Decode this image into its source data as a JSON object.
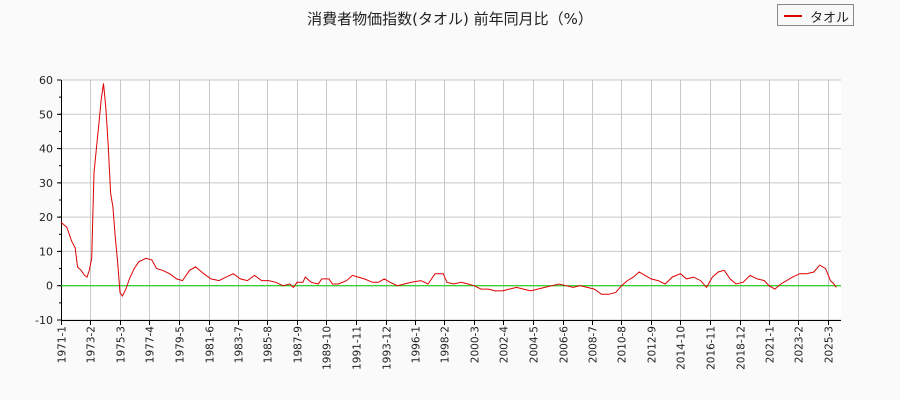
{
  "chart_data": {
    "type": "line",
    "title": "消費者物価指数(タオル) 前年同月比（%）",
    "xlabel": "",
    "ylabel": "",
    "ylim": [
      -10,
      60
    ],
    "yticks": [
      -10,
      0,
      10,
      20,
      30,
      40,
      50,
      60
    ],
    "grid": true,
    "legend_position": "top-right",
    "x_tick_labels": [
      "1971-1",
      "1973-2",
      "1975-3",
      "1977-4",
      "1979-5",
      "1981-6",
      "1983-7",
      "1985-8",
      "1987-9",
      "1989-10",
      "1991-11",
      "1993-12",
      "1996-1",
      "1998-2",
      "2000-3",
      "2002-4",
      "2004-5",
      "2006-6",
      "2008-7",
      "2010-8",
      "2012-9",
      "2014-10",
      "2016-11",
      "2018-12",
      "2021-1",
      "2023-2",
      "2025-3"
    ],
    "reference_line": {
      "y": 0,
      "color": "#00cc00"
    },
    "series": [
      {
        "name": "タオル",
        "color": "#dd0000",
        "points": [
          [
            "1971-1",
            18.5
          ],
          [
            "1971-6",
            17
          ],
          [
            "1971-10",
            13
          ],
          [
            "1972-1",
            11
          ],
          [
            "1972-3",
            5.5
          ],
          [
            "1972-6",
            4.5
          ],
          [
            "1972-9",
            3
          ],
          [
            "1972-11",
            2.5
          ],
          [
            "1973-1",
            4.5
          ],
          [
            "1973-3",
            8
          ],
          [
            "1973-5",
            33
          ],
          [
            "1973-7",
            40
          ],
          [
            "1973-9",
            47
          ],
          [
            "1973-11",
            54
          ],
          [
            "1974-1",
            59
          ],
          [
            "1974-3",
            52
          ],
          [
            "1974-5",
            41
          ],
          [
            "1974-7",
            27
          ],
          [
            "1974-9",
            23
          ],
          [
            "1974-11",
            14
          ],
          [
            "1975-1",
            7
          ],
          [
            "1975-3",
            -2
          ],
          [
            "1975-5",
            -3
          ],
          [
            "1975-8",
            -1
          ],
          [
            "1975-11",
            2
          ],
          [
            "1976-3",
            5
          ],
          [
            "1976-7",
            7
          ],
          [
            "1977-1",
            8
          ],
          [
            "1977-6",
            7.5
          ],
          [
            "1977-10",
            5
          ],
          [
            "1978-3",
            4.5
          ],
          [
            "1978-9",
            3.5
          ],
          [
            "1979-3",
            2
          ],
          [
            "1979-8",
            1.5
          ],
          [
            "1980-2",
            4.5
          ],
          [
            "1980-7",
            5.5
          ],
          [
            "1981-2",
            3.5
          ],
          [
            "1981-8",
            2
          ],
          [
            "1982-3",
            1.5
          ],
          [
            "1982-9",
            2.5
          ],
          [
            "1983-3",
            3.5
          ],
          [
            "1983-9",
            2
          ],
          [
            "1984-3",
            1.5
          ],
          [
            "1984-9",
            3
          ],
          [
            "1985-3",
            1.5
          ],
          [
            "1985-9",
            1.5
          ],
          [
            "1986-3",
            1
          ],
          [
            "1986-9",
            0
          ],
          [
            "1987-3",
            0.5
          ],
          [
            "1987-6",
            -0.5
          ],
          [
            "1987-9",
            1
          ],
          [
            "1988-2",
            1
          ],
          [
            "1988-4",
            2.5
          ],
          [
            "1988-9",
            1
          ],
          [
            "1989-3",
            0.5
          ],
          [
            "1989-6",
            2
          ],
          [
            "1989-12",
            2
          ],
          [
            "1990-3",
            0.5
          ],
          [
            "1990-8",
            0.5
          ],
          [
            "1991-3",
            1.5
          ],
          [
            "1991-8",
            3
          ],
          [
            "1992-1",
            2.5
          ],
          [
            "1992-6",
            2
          ],
          [
            "1993-1",
            1
          ],
          [
            "1993-6",
            1
          ],
          [
            "1993-11",
            2
          ],
          [
            "1994-4",
            1
          ],
          [
            "1994-10",
            0
          ],
          [
            "1995-4",
            0.5
          ],
          [
            "1995-10",
            1
          ],
          [
            "1996-6",
            1.5
          ],
          [
            "1996-12",
            0.5
          ],
          [
            "1997-6",
            3.5
          ],
          [
            "1998-1",
            3.5
          ],
          [
            "1998-4",
            1
          ],
          [
            "1998-10",
            0.5
          ],
          [
            "1999-4",
            1
          ],
          [
            "1999-10",
            0.5
          ],
          [
            "2000-3",
            0
          ],
          [
            "2000-9",
            -1
          ],
          [
            "2001-3",
            -1
          ],
          [
            "2001-9",
            -1.5
          ],
          [
            "2002-3",
            -1.5
          ],
          [
            "2002-9",
            -1
          ],
          [
            "2003-3",
            -0.5
          ],
          [
            "2003-9",
            -1
          ],
          [
            "2004-3",
            -1.5
          ],
          [
            "2004-9",
            -1
          ],
          [
            "2005-3",
            -0.5
          ],
          [
            "2005-9",
            0
          ],
          [
            "2006-3",
            0.5
          ],
          [
            "2006-9",
            0
          ],
          [
            "2007-3",
            -0.5
          ],
          [
            "2007-9",
            0
          ],
          [
            "2008-3",
            -0.5
          ],
          [
            "2008-9",
            -1
          ],
          [
            "2009-3",
            -2.5
          ],
          [
            "2009-9",
            -2.5
          ],
          [
            "2010-3",
            -2
          ],
          [
            "2010-8",
            0
          ],
          [
            "2011-1",
            1.5
          ],
          [
            "2011-6",
            2.5
          ],
          [
            "2011-11",
            4
          ],
          [
            "2012-4",
            3
          ],
          [
            "2012-9",
            2
          ],
          [
            "2013-3",
            1.5
          ],
          [
            "2013-9",
            0.5
          ],
          [
            "2014-3",
            2.5
          ],
          [
            "2014-10",
            3.5
          ],
          [
            "2015-3",
            2
          ],
          [
            "2015-9",
            2.5
          ],
          [
            "2016-3",
            1.5
          ],
          [
            "2016-8",
            -0.5
          ],
          [
            "2017-1",
            2.5
          ],
          [
            "2017-6",
            4
          ],
          [
            "2017-11",
            4.5
          ],
          [
            "2018-4",
            2
          ],
          [
            "2018-9",
            0.5
          ],
          [
            "2019-3",
            1
          ],
          [
            "2019-9",
            3
          ],
          [
            "2020-3",
            2
          ],
          [
            "2020-9",
            1.5
          ],
          [
            "2021-1",
            0
          ],
          [
            "2021-6",
            -1
          ],
          [
            "2021-11",
            0.5
          ],
          [
            "2022-4",
            1.5
          ],
          [
            "2022-9",
            2.5
          ],
          [
            "2023-3",
            3.5
          ],
          [
            "2023-9",
            3.5
          ],
          [
            "2024-3",
            4
          ],
          [
            "2024-8",
            6
          ],
          [
            "2025-1",
            5
          ],
          [
            "2025-5",
            1.5
          ],
          [
            "2025-8",
            0.5
          ],
          [
            "2025-10",
            -0.5
          ]
        ]
      }
    ]
  },
  "legend": {
    "label": "タオル",
    "color": "#dd0000"
  }
}
